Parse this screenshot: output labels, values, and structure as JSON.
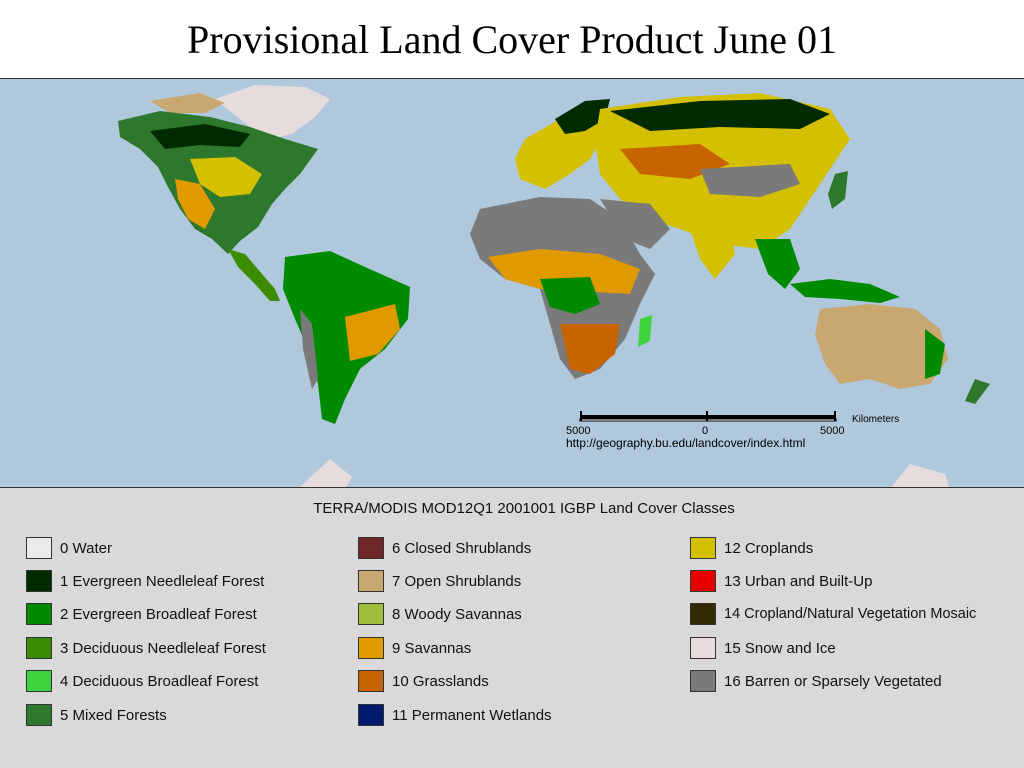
{
  "title": "Provisional Land Cover Product June 01",
  "map": {
    "scale_unit": "Kilometers",
    "scale_left": "5000",
    "scale_center": "0",
    "scale_right": "5000",
    "url": "http://geography.bu.edu/landcover/index.html",
    "ocean_color": "#b0c8dc"
  },
  "legend": {
    "title": "TERRA/MODIS MOD12Q1 2001001 IGBP Land Cover Classes",
    "classes": [
      {
        "label": "0 Water",
        "color": "#ebebeb"
      },
      {
        "label": "1 Evergreen Needleleaf Forest",
        "color": "#002a00"
      },
      {
        "label": "2 Evergreen Broadleaf Forest",
        "color": "#008a00"
      },
      {
        "label": "3 Deciduous Needleleaf Forest",
        "color": "#3c8c00"
      },
      {
        "label": "4 Deciduous Broadleaf Forest",
        "color": "#3fd43f"
      },
      {
        "label": "5 Mixed Forests",
        "color": "#2d782d"
      },
      {
        "label": "6 Closed Shrublands",
        "color": "#6e2828"
      },
      {
        "label": "7 Open Shrublands",
        "color": "#c8a870"
      },
      {
        "label": "8 Woody Savannas",
        "color": "#9ebe3c"
      },
      {
        "label": "9 Savannas",
        "color": "#e09a00"
      },
      {
        "label": "10 Grasslands",
        "color": "#c86400"
      },
      {
        "label": "11 Permanent Wetlands",
        "color": "#001a6e"
      },
      {
        "label": "12 Croplands",
        "color": "#d4c000"
      },
      {
        "label": "13 Urban and Built-Up",
        "color": "#e60000"
      },
      {
        "label": "14 Cropland/Natural Vegetation Mosaic",
        "color": "#332a00"
      },
      {
        "label": "15 Snow and Ice",
        "color": "#e6dcdc"
      },
      {
        "label": "16 Barren or Sparsely Vegetated",
        "color": "#7a7a7a"
      }
    ]
  }
}
